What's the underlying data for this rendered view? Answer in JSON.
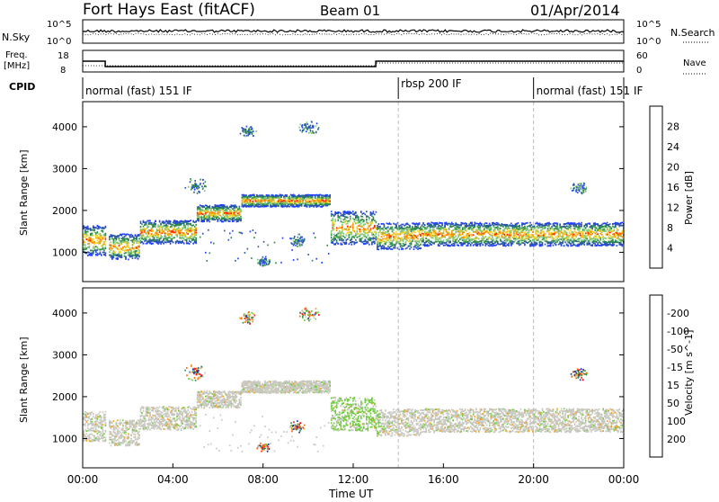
{
  "header": {
    "radar": "Fort Hays East (fitACF)",
    "beam": "Beam 01",
    "date": "01/Apr/2014"
  },
  "panels": {
    "nsky_label": "N.Sky",
    "nsearch_label": "N.Search",
    "freq_label_1": "Freq.",
    "freq_label_2": "[MHz]",
    "nave_label": "Nave",
    "cpid_label": "CPID",
    "nsky_ticks": [
      "10^5",
      "10^0"
    ],
    "nsearch_ticks": [
      "10^5",
      "10^0"
    ],
    "freq_ticks": [
      "18",
      "8"
    ],
    "nave_ticks": [
      "60",
      "0"
    ]
  },
  "cpid_segments": [
    {
      "label": "normal (fast) 151 IF",
      "start_h": 0,
      "end_h": 14
    },
    {
      "label": "rbsp 200 IF",
      "start_h": 14,
      "end_h": 20
    },
    {
      "label": "normal (fast) 151 IF",
      "start_h": 20,
      "end_h": 24
    }
  ],
  "freq_steps": {
    "segments": [
      {
        "start_h": 0,
        "end_h": 1.0,
        "freq_mhz": 13.0
      },
      {
        "start_h": 1.0,
        "end_h": 13.0,
        "freq_mhz": 10.5
      },
      {
        "start_h": 13.0,
        "end_h": 24,
        "freq_mhz": 13.0
      }
    ]
  },
  "chart_data": [
    {
      "type": "heatmap",
      "name": "power",
      "xlabel": "",
      "ylabel": "Slant Range [km]",
      "xlim": [
        0,
        24
      ],
      "ylim": [
        300,
        4600
      ],
      "yticks": [
        "1000",
        "2000",
        "3000",
        "4000"
      ],
      "colorbar_label": "Power [dB]",
      "colorbar_ticks": [
        "4",
        "8",
        "12",
        "16",
        "20",
        "24",
        "28"
      ],
      "colorbar_range": [
        0,
        32
      ],
      "colors": [
        "#1f3fff",
        "#2a55aa",
        "#2e8a4a",
        "#7fc87a",
        "#f0d020",
        "#ff8a00",
        "#ff2000"
      ]
    },
    {
      "type": "heatmap",
      "name": "velocity",
      "xlabel": "Time UT",
      "ylabel": "Slant Range [km]",
      "xlim": [
        0,
        24
      ],
      "ylim": [
        300,
        4600
      ],
      "xticks": [
        "00:00",
        "04:00",
        "08:00",
        "12:00",
        "16:00",
        "20:00",
        "00:00"
      ],
      "yticks": [
        "1000",
        "2000",
        "3000",
        "4000"
      ],
      "colorbar_label": "Velocity [m s^-1]",
      "colorbar_ticks": [
        "200",
        "100",
        "50",
        "15",
        "-15",
        "-50",
        "-100",
        "-200"
      ],
      "colors": [
        "#1a2fb0",
        "#2e8a4a",
        "#6dcc3a",
        "#c8c8c0",
        "#f0a020",
        "#ff6000",
        "#ff1010"
      ]
    }
  ],
  "echo_bands": [
    {
      "start_h": 0.0,
      "end_h": 1.0,
      "center_km": 1300,
      "width_km": 450
    },
    {
      "start_h": 1.0,
      "end_h": 2.5,
      "center_km": 1150,
      "width_km": 380
    },
    {
      "start_h": 2.5,
      "end_h": 5.0,
      "center_km": 1500,
      "width_km": 350
    },
    {
      "start_h": 5.0,
      "end_h": 7.0,
      "center_km": 1950,
      "width_km": 250
    },
    {
      "start_h": 7.0,
      "end_h": 8.5,
      "center_km": 2250,
      "width_km": 180
    },
    {
      "start_h": 8.5,
      "end_h": 11.0,
      "center_km": 2250,
      "width_km": 180
    },
    {
      "start_h": 11.0,
      "end_h": 13.0,
      "center_km": 1600,
      "width_km": 500
    },
    {
      "start_h": 13.0,
      "end_h": 15.0,
      "center_km": 1400,
      "width_km": 400
    },
    {
      "start_h": 15.0,
      "end_h": 24.0,
      "center_km": 1450,
      "width_km": 350
    }
  ],
  "patches": [
    {
      "h": 7.3,
      "km": 3900,
      "r": 150
    },
    {
      "h": 10.0,
      "km": 4000,
      "r": 180
    },
    {
      "h": 5.0,
      "km": 2600,
      "r": 200
    },
    {
      "h": 22.0,
      "km": 2550,
      "r": 150
    },
    {
      "h": 8.0,
      "km": 800,
      "r": 120
    },
    {
      "h": 9.5,
      "km": 1300,
      "r": 150
    }
  ]
}
